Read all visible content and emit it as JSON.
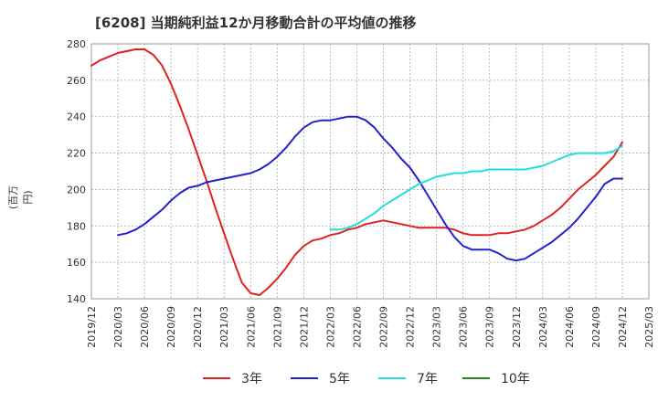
{
  "chart_data": {
    "type": "line",
    "title": "[6208]  当期純利益12か月移動合計の平均値の推移",
    "ylabel": "(百万円)",
    "xlabel": "",
    "ylim": [
      140,
      280
    ],
    "y_ticks": [
      140,
      160,
      180,
      200,
      220,
      240,
      260,
      280
    ],
    "x_ticks": [
      "2019/12",
      "2020/03",
      "2020/06",
      "2020/09",
      "2020/12",
      "2021/03",
      "2021/06",
      "2021/09",
      "2021/12",
      "2022/03",
      "2022/06",
      "2022/09",
      "2022/12",
      "2023/03",
      "2023/06",
      "2023/09",
      "2023/12",
      "2024/03",
      "2024/06",
      "2024/09",
      "2024/12",
      "2025/03"
    ],
    "grid": true,
    "legend_position": "bottom",
    "series": [
      {
        "name": "3年",
        "color": "#dd2222",
        "x": [
          "2019/12",
          "2020/01",
          "2020/02",
          "2020/03",
          "2020/04",
          "2020/05",
          "2020/06",
          "2020/07",
          "2020/08",
          "2020/09",
          "2020/10",
          "2020/11",
          "2020/12",
          "2021/01",
          "2021/02",
          "2021/03",
          "2021/04",
          "2021/05",
          "2021/06",
          "2021/07",
          "2021/08",
          "2021/09",
          "2021/10",
          "2021/11",
          "2021/12",
          "2022/01",
          "2022/02",
          "2022/03",
          "2022/04",
          "2022/05",
          "2022/06",
          "2022/07",
          "2022/08",
          "2022/09",
          "2022/10",
          "2022/11",
          "2022/12",
          "2023/01",
          "2023/02",
          "2023/03",
          "2023/04",
          "2023/05",
          "2023/06",
          "2023/07",
          "2023/08",
          "2023/09",
          "2023/10",
          "2023/11",
          "2023/12",
          "2024/01",
          "2024/02",
          "2024/03",
          "2024/04",
          "2024/05",
          "2024/06",
          "2024/07",
          "2024/08",
          "2024/09",
          "2024/10",
          "2024/11",
          "2024/12"
        ],
        "values": [
          268,
          271,
          273,
          275,
          276,
          277,
          277,
          274,
          268,
          258,
          246,
          233,
          219,
          205,
          190,
          176,
          162,
          149,
          143,
          142,
          146,
          151,
          157,
          164,
          169,
          172,
          173,
          175,
          176,
          178,
          179,
          181,
          182,
          183,
          182,
          181,
          180,
          179,
          179,
          179,
          179,
          178,
          176,
          175,
          175,
          175,
          176,
          176,
          177,
          178,
          180,
          183,
          186,
          190,
          195,
          200,
          204,
          208,
          213,
          218,
          226
        ]
      },
      {
        "name": "5年",
        "color": "#2222cc",
        "x": [
          "2020/03",
          "2020/04",
          "2020/05",
          "2020/06",
          "2020/07",
          "2020/08",
          "2020/09",
          "2020/10",
          "2020/11",
          "2020/12",
          "2021/01",
          "2021/02",
          "2021/03",
          "2021/04",
          "2021/05",
          "2021/06",
          "2021/07",
          "2021/08",
          "2021/09",
          "2021/10",
          "2021/11",
          "2021/12",
          "2022/01",
          "2022/02",
          "2022/03",
          "2022/04",
          "2022/05",
          "2022/06",
          "2022/07",
          "2022/08",
          "2022/09",
          "2022/10",
          "2022/11",
          "2022/12",
          "2023/01",
          "2023/02",
          "2023/03",
          "2023/04",
          "2023/05",
          "2023/06",
          "2023/07",
          "2023/08",
          "2023/09",
          "2023/10",
          "2023/11",
          "2023/12",
          "2024/01",
          "2024/02",
          "2024/03",
          "2024/04",
          "2024/05",
          "2024/06",
          "2024/07",
          "2024/08",
          "2024/09",
          "2024/10",
          "2024/11",
          "2024/12"
        ],
        "values": [
          175,
          176,
          178,
          181,
          185,
          189,
          194,
          198,
          201,
          202,
          204,
          205,
          206,
          207,
          208,
          209,
          211,
          214,
          218,
          223,
          229,
          234,
          237,
          238,
          238,
          239,
          240,
          240,
          238,
          234,
          228,
          223,
          217,
          212,
          205,
          197,
          189,
          181,
          174,
          169,
          167,
          167,
          167,
          165,
          162,
          161,
          162,
          165,
          168,
          171,
          175,
          179,
          184,
          190,
          196,
          203,
          206,
          206
        ]
      },
      {
        "name": "7年",
        "color": "#22dddd",
        "x": [
          "2022/03",
          "2022/04",
          "2022/05",
          "2022/06",
          "2022/07",
          "2022/08",
          "2022/09",
          "2022/10",
          "2022/11",
          "2022/12",
          "2023/01",
          "2023/02",
          "2023/03",
          "2023/04",
          "2023/05",
          "2023/06",
          "2023/07",
          "2023/08",
          "2023/09",
          "2023/10",
          "2023/11",
          "2023/12",
          "2024/01",
          "2024/02",
          "2024/03",
          "2024/04",
          "2024/05",
          "2024/06",
          "2024/07",
          "2024/08",
          "2024/09",
          "2024/10",
          "2024/11",
          "2024/12"
        ],
        "values": [
          178,
          178,
          179,
          181,
          184,
          187,
          191,
          194,
          197,
          200,
          203,
          205,
          207,
          208,
          209,
          209,
          210,
          210,
          211,
          211,
          211,
          211,
          211,
          212,
          213,
          215,
          217,
          219,
          220,
          220,
          220,
          220,
          221,
          224
        ]
      },
      {
        "name": "10年",
        "color": "#228822",
        "x": [],
        "values": []
      }
    ]
  }
}
